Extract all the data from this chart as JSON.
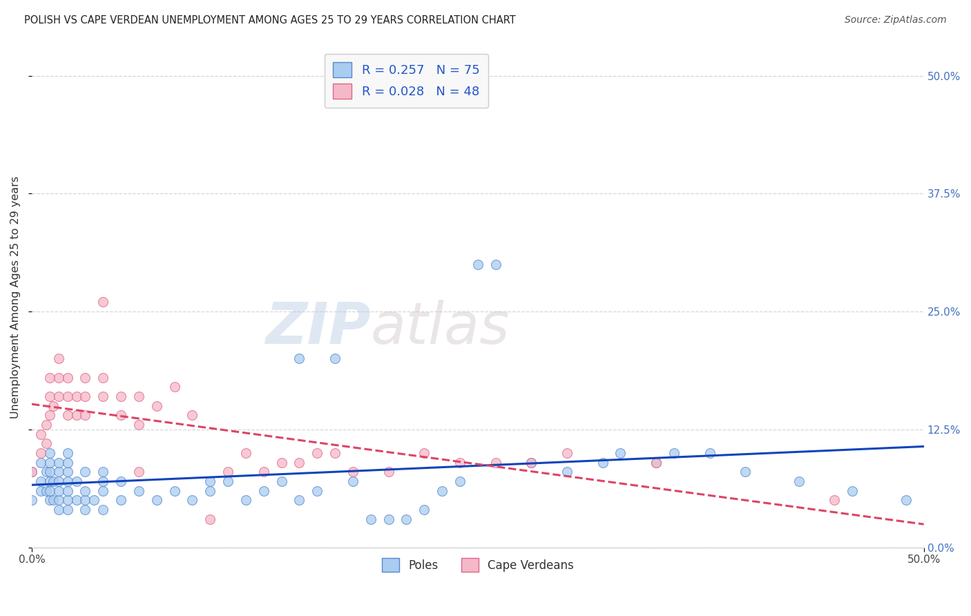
{
  "title": "POLISH VS CAPE VERDEAN UNEMPLOYMENT AMONG AGES 25 TO 29 YEARS CORRELATION CHART",
  "source": "Source: ZipAtlas.com",
  "ylabel": "Unemployment Among Ages 25 to 29 years",
  "xlim": [
    0.0,
    0.5
  ],
  "ylim": [
    0.0,
    0.53
  ],
  "ytick_vals": [
    0.0,
    0.125,
    0.25,
    0.375,
    0.5
  ],
  "ytick_labels": [
    "0.0%",
    "12.5%",
    "25.0%",
    "37.5%",
    "50.0%"
  ],
  "xtick_vals": [
    0.0,
    0.5
  ],
  "xtick_labels": [
    "0.0%",
    "50.0%"
  ],
  "poles_color": "#aaccf0",
  "poles_edge_color": "#5588cc",
  "cape_color": "#f5b8c8",
  "cape_edge_color": "#dd6688",
  "trend_poles_color": "#1144bb",
  "trend_cape_color": "#dd4466",
  "R_poles": 0.257,
  "N_poles": 75,
  "R_cape": 0.028,
  "N_cape": 48,
  "watermark_zip": "ZIP",
  "watermark_atlas": "atlas",
  "grid_color": "#cccccc",
  "background_color": "#ffffff",
  "legend_box_color": "#f8f8f8",
  "poles_x": [
    0.0,
    0.0,
    0.005,
    0.005,
    0.005,
    0.008,
    0.008,
    0.01,
    0.01,
    0.01,
    0.01,
    0.01,
    0.01,
    0.012,
    0.012,
    0.015,
    0.015,
    0.015,
    0.015,
    0.015,
    0.015,
    0.02,
    0.02,
    0.02,
    0.02,
    0.02,
    0.02,
    0.02,
    0.025,
    0.025,
    0.03,
    0.03,
    0.03,
    0.03,
    0.035,
    0.04,
    0.04,
    0.04,
    0.04,
    0.05,
    0.05,
    0.06,
    0.07,
    0.08,
    0.09,
    0.1,
    0.1,
    0.11,
    0.12,
    0.13,
    0.14,
    0.15,
    0.15,
    0.16,
    0.17,
    0.18,
    0.19,
    0.2,
    0.21,
    0.22,
    0.23,
    0.24,
    0.25,
    0.26,
    0.28,
    0.3,
    0.32,
    0.33,
    0.35,
    0.36,
    0.38,
    0.4,
    0.43,
    0.46,
    0.49
  ],
  "poles_y": [
    0.05,
    0.08,
    0.06,
    0.07,
    0.09,
    0.06,
    0.08,
    0.05,
    0.06,
    0.07,
    0.08,
    0.09,
    0.1,
    0.05,
    0.07,
    0.04,
    0.05,
    0.06,
    0.07,
    0.08,
    0.09,
    0.04,
    0.05,
    0.06,
    0.07,
    0.08,
    0.09,
    0.1,
    0.05,
    0.07,
    0.04,
    0.05,
    0.06,
    0.08,
    0.05,
    0.04,
    0.06,
    0.07,
    0.08,
    0.05,
    0.07,
    0.06,
    0.05,
    0.06,
    0.05,
    0.06,
    0.07,
    0.07,
    0.05,
    0.06,
    0.07,
    0.05,
    0.2,
    0.06,
    0.2,
    0.07,
    0.03,
    0.03,
    0.03,
    0.04,
    0.06,
    0.07,
    0.3,
    0.3,
    0.09,
    0.08,
    0.09,
    0.1,
    0.09,
    0.1,
    0.1,
    0.08,
    0.07,
    0.06,
    0.05
  ],
  "cape_x": [
    0.0,
    0.005,
    0.005,
    0.008,
    0.008,
    0.01,
    0.01,
    0.01,
    0.012,
    0.015,
    0.015,
    0.015,
    0.02,
    0.02,
    0.02,
    0.025,
    0.025,
    0.03,
    0.03,
    0.03,
    0.04,
    0.04,
    0.04,
    0.05,
    0.05,
    0.06,
    0.06,
    0.06,
    0.07,
    0.08,
    0.09,
    0.1,
    0.11,
    0.12,
    0.13,
    0.14,
    0.15,
    0.16,
    0.17,
    0.18,
    0.2,
    0.22,
    0.24,
    0.26,
    0.28,
    0.3,
    0.35,
    0.45
  ],
  "cape_y": [
    0.08,
    0.1,
    0.12,
    0.11,
    0.13,
    0.14,
    0.16,
    0.18,
    0.15,
    0.16,
    0.18,
    0.2,
    0.14,
    0.16,
    0.18,
    0.14,
    0.16,
    0.14,
    0.16,
    0.18,
    0.16,
    0.18,
    0.26,
    0.14,
    0.16,
    0.08,
    0.13,
    0.16,
    0.15,
    0.17,
    0.14,
    0.03,
    0.08,
    0.1,
    0.08,
    0.09,
    0.09,
    0.1,
    0.1,
    0.08,
    0.08,
    0.1,
    0.09,
    0.09,
    0.09,
    0.1,
    0.09,
    0.05
  ]
}
